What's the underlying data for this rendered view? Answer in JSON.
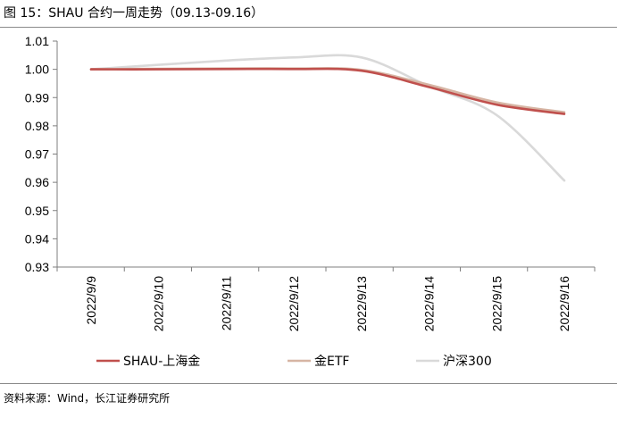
{
  "figure": {
    "title": "图 15：SHAU 合约一周走势（09.13-09.16）",
    "source": "资料来源：Wind，长江证券研究所"
  },
  "colors": {
    "rule": "#8a8a8a",
    "axis": "#7f7f7f"
  },
  "chart_data": {
    "type": "line",
    "title": "",
    "xlabel": "",
    "ylabel": "",
    "x": [
      "2022/9/9",
      "2022/9/10",
      "2022/9/11",
      "2022/9/12",
      "2022/9/13",
      "2022/9/14",
      "2022/9/15",
      "2022/9/16"
    ],
    "ylim": [
      0.93,
      1.01
    ],
    "yticks": [
      "0.93",
      "0.94",
      "0.95",
      "0.96",
      "0.97",
      "0.98",
      "0.99",
      "1.00",
      "1.01"
    ],
    "grid": false,
    "legend_position": "bottom",
    "series": [
      {
        "name": "SHAU-上海金",
        "color": "#c0504d",
        "values": [
          1.0,
          1.0,
          1.0001,
          1.0001,
          0.9995,
          0.9937,
          0.9875,
          0.9842
        ]
      },
      {
        "name": "金ETF",
        "color": "#d6b5a4",
        "values": [
          1.0,
          1.0002,
          1.0003,
          1.0003,
          0.9998,
          0.9945,
          0.9883,
          0.9848
        ]
      },
      {
        "name": "沪深300",
        "color": "#d9d9d9",
        "values": [
          1.0,
          1.0016,
          1.0031,
          1.0042,
          1.0042,
          0.994,
          0.9838,
          0.9606
        ]
      }
    ]
  }
}
